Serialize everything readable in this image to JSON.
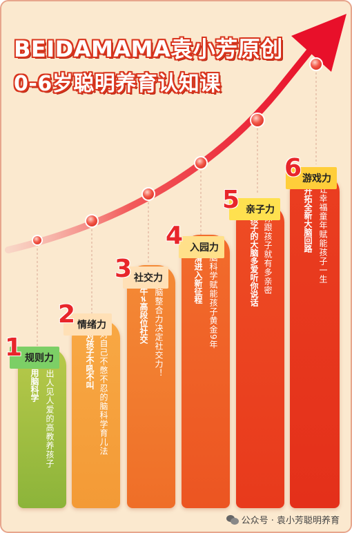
{
  "title": {
    "line1": "BEIDAMAMA袁小芳原创",
    "line2": "0-6岁聪明养育认知课"
  },
  "steps": [
    {
      "num": "1",
      "label": "规则力",
      "bold": "巧用脑科学",
      "thin": "宠出人见人爱的高教养孩子",
      "color": "#8cb43a",
      "label_bg": "#7ccf66"
    },
    {
      "num": "2",
      "label": "情绪力",
      "bold": "对孩子不吼不叫",
      "thin": "对自己不憋不忍的脑科学育儿法",
      "color": "#f39a36",
      "label_bg": "#ffe0b6"
    },
    {
      "num": "3",
      "label": "社交力",
      "bold": "社牛≠高段位社交",
      "thin": "大脑整合力决定社交力！",
      "color": "#f07a2c",
      "label_bg": "#ffe0b6"
    },
    {
      "num": "4",
      "label": "入园力",
      "bold": "丝滑进入新征程",
      "thin": "用脑科学赋能孩子黄金9年",
      "color": "#ee5b25",
      "label_bg": "#ffe08a"
    },
    {
      "num": "5",
      "label": "亲子力",
      "bold": "孩子的大脑多爱听你说话",
      "thin": "你跟孩子就有多亲密",
      "color": "#ea3f1e",
      "label_bg": "#ffe14f"
    },
    {
      "num": "6",
      "label": "游戏力",
      "bold": "开拓全新大脑回路",
      "thin": "让幸福童年赋能孩子一生",
      "color": "#e7321a",
      "label_bg": "#ffce3a"
    }
  ],
  "footer": {
    "text": "公众号 · 袁小芳聪明养育",
    "icon": "wechat-icon"
  },
  "colors": {
    "background": "#fbe9cf",
    "accent": "#e8262a",
    "title_outline": "#d9351e"
  }
}
